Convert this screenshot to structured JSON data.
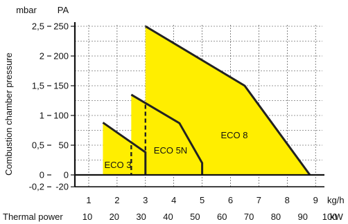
{
  "chart_data": {
    "type": "area",
    "ylabel": "Combustion chamber pressure",
    "y_unit_left": "mbar",
    "y_unit_right": "PA",
    "x_unit_top": "kg/h",
    "x_label_bottom": "Thermal power",
    "x_unit_bottom": "kW",
    "ylim_pa": [
      -20,
      250
    ],
    "xlim_kgh": [
      0.5,
      9.2
    ],
    "grid": true,
    "y_ticks_pa": [
      -20,
      0,
      50,
      100,
      150,
      200,
      250
    ],
    "y_ticks_pa_labels": [
      "-20",
      "0",
      "50",
      "100",
      "150",
      "200",
      "250"
    ],
    "y_ticks_mbar": [
      {
        "label": "-0,2",
        "pa": -20
      },
      {
        "label": "0",
        "pa": 0
      },
      {
        "label": "0,5",
        "pa": 50
      },
      {
        "label": "1",
        "pa": 100
      },
      {
        "label": "1,5",
        "pa": 150
      },
      {
        "label": "2",
        "pa": 200
      },
      {
        "label": "2,5",
        "pa": 250
      }
    ],
    "x_ticks_kgh": [
      "1",
      "2",
      "3",
      "4",
      "5",
      "6",
      "7",
      "8",
      "9"
    ],
    "x_ticks_kw": [
      {
        "label": "10",
        "kgh": 0.95
      },
      {
        "label": "20",
        "kgh": 1.9
      },
      {
        "label": "30",
        "kgh": 2.85
      },
      {
        "label": "40",
        "kgh": 3.8
      },
      {
        "label": "50",
        "kgh": 4.75
      },
      {
        "label": "60",
        "kgh": 5.7
      },
      {
        "label": "70",
        "kgh": 6.65
      },
      {
        "label": "80",
        "kgh": 7.6
      },
      {
        "label": "90",
        "kgh": 8.55
      },
      {
        "label": "100",
        "kgh": 9.5
      }
    ],
    "fill_color": "#ffee00",
    "line_color": "#222222",
    "series": [
      {
        "name": "ECO 3",
        "points": [
          [
            1.5,
            88
          ],
          [
            3.0,
            38
          ],
          [
            3.0,
            0
          ]
        ],
        "fill_from_x": 1.5,
        "fill_to_x": 3.0,
        "dashed_x": 2.5,
        "dashed_ymax": 50
      },
      {
        "name": "ECO 5N",
        "points": [
          [
            2.5,
            135
          ],
          [
            4.2,
            87
          ],
          [
            5.0,
            20
          ],
          [
            5.0,
            0
          ]
        ],
        "fill_from_x": 2.5,
        "fill_to_x": 5.0,
        "dashed_x": 3.0,
        "dashed_ymax": 118
      },
      {
        "name": "ECO 8",
        "points": [
          [
            3.0,
            250
          ],
          [
            6.5,
            150
          ],
          [
            8.8,
            0
          ]
        ],
        "fill_from_x": 3.0,
        "fill_to_x": 8.8
      }
    ]
  }
}
